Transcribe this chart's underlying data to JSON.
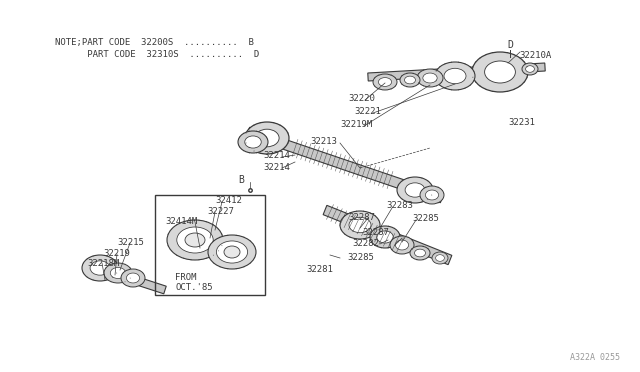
{
  "bg_color": "#ffffff",
  "line_color": "#3a3a3a",
  "text_color": "#3a3a3a",
  "gear_fill": "#e8e8e8",
  "note_line1": "NOTE;PART CODE  32200S  ..........  B",
  "note_line2": "      PART CODE  32310S  ..........  D",
  "watermark": "A322A 0255",
  "figsize": [
    6.4,
    3.72
  ],
  "dpi": 100
}
